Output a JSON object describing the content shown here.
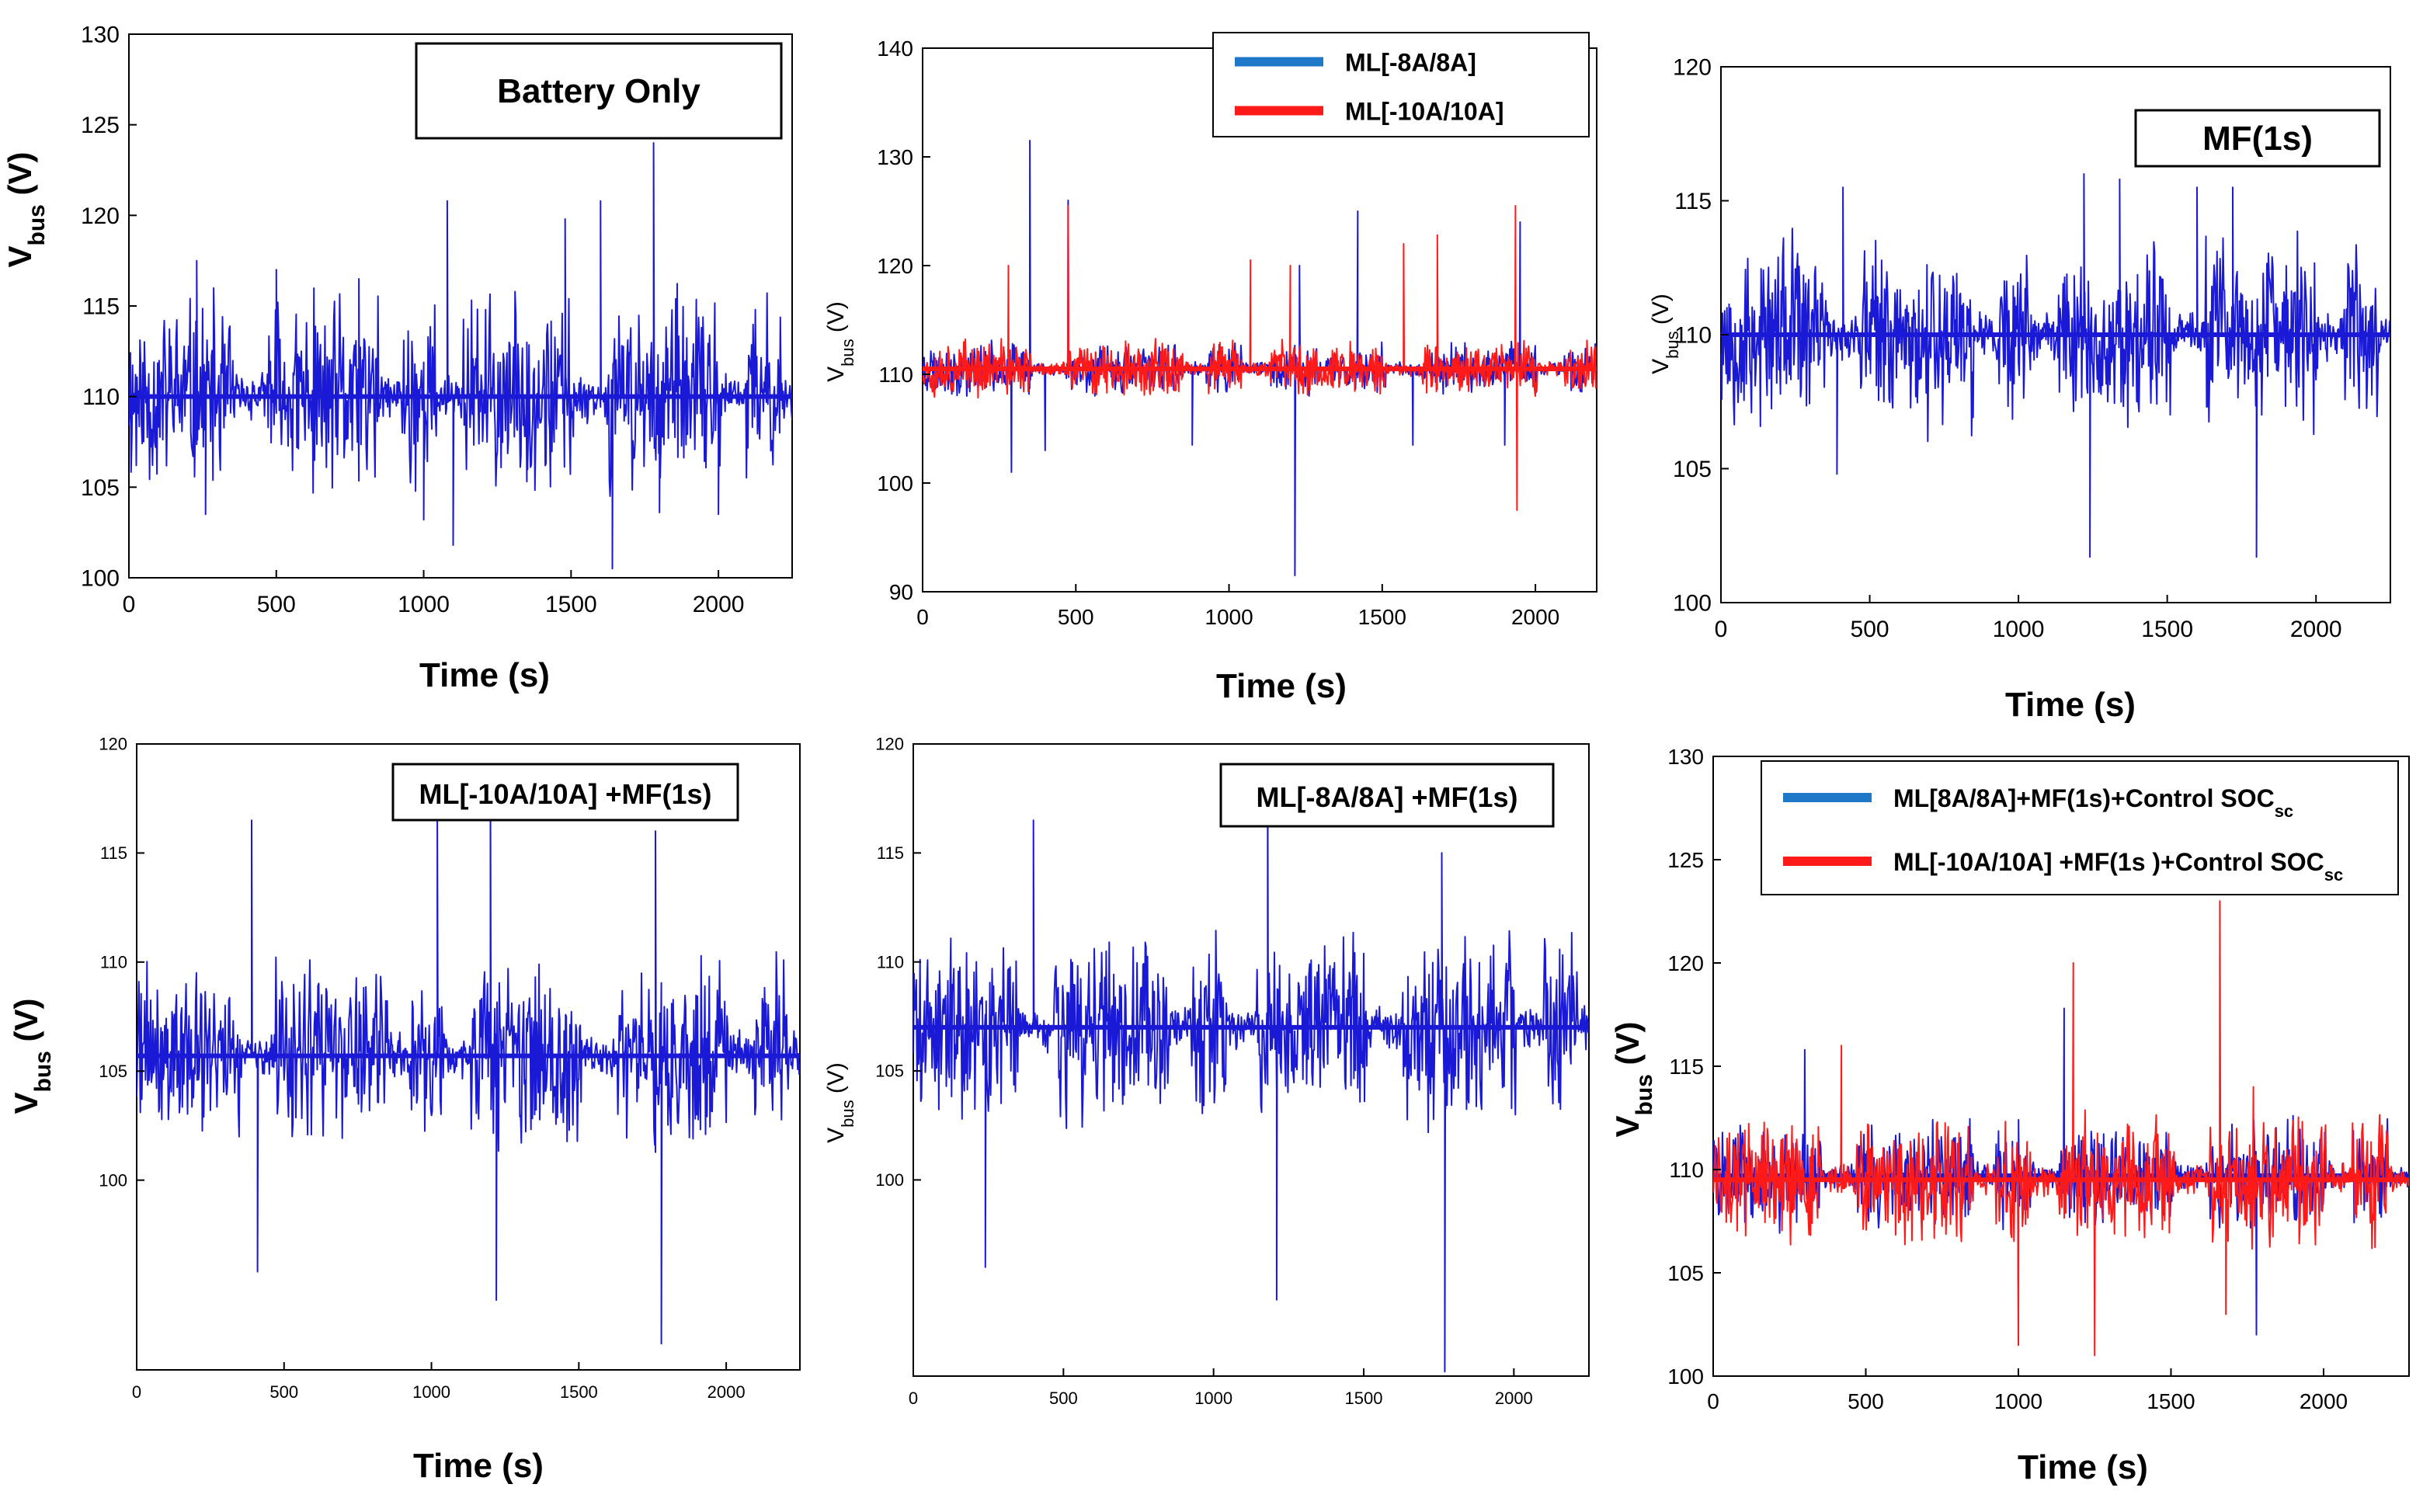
{
  "figure": {
    "colors": {
      "blue": "#1a1ad6",
      "red": "#ff1a1a",
      "legend_blue": "#1f77c8",
      "legend_red": "#ff1a1a",
      "magenta": "#d81bd8"
    }
  },
  "chart_data": [
    {
      "type": "line",
      "ylabel_main": "V",
      "ylabel_sub": "bus",
      "ylabel_tail": " (V)",
      "xlabel": "Time (s)",
      "annotation": "Battery Only",
      "xticks": [
        0,
        500,
        1000,
        1500,
        2000
      ],
      "yticks": [
        100,
        105,
        110,
        115,
        120,
        125,
        130
      ],
      "xlim": [
        0,
        2250
      ],
      "ylim": [
        100,
        130
      ],
      "baseline": 110,
      "series": [
        {
          "color": "#1a1ad6",
          "baseline": 110,
          "noise": 4.5,
          "seed": 11,
          "spikes": [
            [
              230,
              117.5
            ],
            [
              260,
              103.5
            ],
            [
              500,
              117
            ],
            [
              780,
              116.5
            ],
            [
              1000,
              103.2
            ],
            [
              1080,
              120.8
            ],
            [
              1100,
              101.8
            ],
            [
              1350,
              113
            ],
            [
              1480,
              119.8
            ],
            [
              1600,
              120.8
            ],
            [
              1640,
              100.5
            ],
            [
              1780,
              124
            ],
            [
              1800,
              103.6
            ],
            [
              2000,
              103.5
            ]
          ]
        }
      ]
    },
    {
      "type": "line",
      "ylabel_main": "V",
      "ylabel_sub": "bus",
      "ylabel_tail": " (V)",
      "xlabel": "Time (s)",
      "legend": [
        "ML[-8A/8A]",
        "ML[-10A/10A]"
      ],
      "xticks": [
        0,
        500,
        1000,
        1500,
        2000
      ],
      "yticks": [
        90,
        100,
        110,
        120,
        130,
        140
      ],
      "xlim": [
        0,
        2200
      ],
      "ylim": [
        90,
        140
      ],
      "series": [
        {
          "name": "ML[-8A/8A]",
          "color": "#1a1ad6",
          "baseline": 110.5,
          "noise": 2.0,
          "seed": 23,
          "spikes": [
            [
              290,
              101
            ],
            [
              350,
              131.5
            ],
            [
              400,
              103
            ],
            [
              475,
              126
            ],
            [
              880,
              103.5
            ],
            [
              1215,
              91.5
            ],
            [
              1230,
              120
            ],
            [
              1420,
              125
            ],
            [
              1600,
              103.5
            ],
            [
              1900,
              103.5
            ],
            [
              1950,
              124
            ]
          ]
        },
        {
          "name": "ML[-10A/10A]",
          "color": "#ff1a1a",
          "baseline": 110.5,
          "noise": 2.2,
          "seed": 37,
          "spikes": [
            [
              280,
              120
            ],
            [
              475,
              125.5
            ],
            [
              1070,
              120.5
            ],
            [
              1200,
              120
            ],
            [
              1570,
              122
            ],
            [
              1680,
              122.8
            ],
            [
              1935,
              125.5
            ],
            [
              1940,
              97.5
            ]
          ]
        }
      ]
    },
    {
      "type": "line",
      "ylabel_main": "V",
      "ylabel_sub": "bus",
      "ylabel_tail": " (V)",
      "xlabel": "Time (s)",
      "annotation": "MF(1s)",
      "xticks": [
        0,
        500,
        1000,
        1500,
        2000
      ],
      "yticks": [
        100,
        105,
        110,
        115,
        120
      ],
      "xlim": [
        0,
        2250
      ],
      "ylim": [
        100,
        120
      ],
      "series": [
        {
          "color": "#1a1ad6",
          "baseline": 110,
          "noise": 3.0,
          "seed": 53,
          "spikes": [
            [
              390,
              104.8
            ],
            [
              410,
              115.5
            ],
            [
              1220,
              116
            ],
            [
              1240,
              101.7
            ],
            [
              1340,
              115.8
            ],
            [
              1600,
              115.5
            ],
            [
              1800,
              101.7
            ],
            [
              1720,
              115.5
            ]
          ]
        }
      ]
    },
    {
      "type": "line",
      "ylabel_main": "V",
      "ylabel_sub": "bus",
      "ylabel_tail": " (V)",
      "xlabel": "Time (s)",
      "annotation": "ML[-10A/10A] +MF(1s)",
      "xticks": [
        0,
        500,
        1000,
        1500,
        2000
      ],
      "yticks": [
        100,
        105,
        110,
        115,
        120
      ],
      "xlim": [
        0,
        2250
      ],
      "ylim": [
        91.3,
        120
      ],
      "series": [
        {
          "color": "#1a1ad6",
          "baseline": 105.7,
          "noise": 3.5,
          "seed": 71,
          "spikes": [
            [
              390,
              116.5
            ],
            [
              410,
              95.8
            ],
            [
              1020,
              117
            ],
            [
              1200,
              118.5
            ],
            [
              1220,
              94.5
            ],
            [
              1780,
              92.5
            ],
            [
              1760,
              116
            ]
          ]
        }
      ]
    },
    {
      "type": "line",
      "ylabel_main": "V",
      "ylabel_sub": "bus",
      "ylabel_tail": " (V)",
      "xlabel": "",
      "annotation": "ML[-8A/8A] +MF(1s)",
      "xticks": [
        0,
        500,
        1000,
        1500,
        2000
      ],
      "yticks": [
        100,
        105,
        110,
        115,
        120
      ],
      "xlim": [
        0,
        2250
      ],
      "ylim": [
        91.0,
        120
      ],
      "series": [
        {
          "color": "#1a1ad6",
          "baseline": 107,
          "noise": 3.5,
          "seed": 89,
          "spikes": [
            [
              240,
              96
            ],
            [
              400,
              116.5
            ],
            [
              1180,
              119
            ],
            [
              1210,
              94.5
            ],
            [
              1770,
              91.2
            ],
            [
              1760,
              115
            ]
          ]
        }
      ]
    },
    {
      "type": "line",
      "ylabel_main": "V",
      "ylabel_sub": "bus",
      "ylabel_tail": " (V)",
      "xlabel": "Time (s)",
      "legend": [
        "ML[8A/8A]+MF(1s)+Control SOC",
        "ML[-10A/10A] +MF(1s )+Control SOC"
      ],
      "legend_sub": "sc",
      "xticks": [
        0,
        500,
        1000,
        1500,
        2000
      ],
      "yticks": [
        100,
        105,
        110,
        115,
        120,
        125,
        130
      ],
      "xlim": [
        0,
        2280
      ],
      "ylim": [
        100,
        130
      ],
      "series": [
        {
          "name": "ML[8A/8A]+MF(1s)+Control SOC",
          "color": "#1a1ad6",
          "baseline": 109.7,
          "noise": 2.2,
          "seed": 101,
          "spikes": [
            [
              300,
              115.8
            ],
            [
              1000,
              103
            ],
            [
              1150,
              117.8
            ],
            [
              1780,
              102
            ]
          ]
        },
        {
          "name": "ML[-10A/10A] +MF(1s )+Control SOC",
          "color": "#ff1a1a",
          "baseline": 109.5,
          "noise": 2.5,
          "seed": 131,
          "spikes": [
            [
              420,
              116
            ],
            [
              1000,
              101.5
            ],
            [
              1180,
              120
            ],
            [
              1250,
              101
            ],
            [
              1660,
              123
            ],
            [
              1680,
              103
            ],
            [
              1770,
              114
            ]
          ]
        }
      ]
    }
  ]
}
